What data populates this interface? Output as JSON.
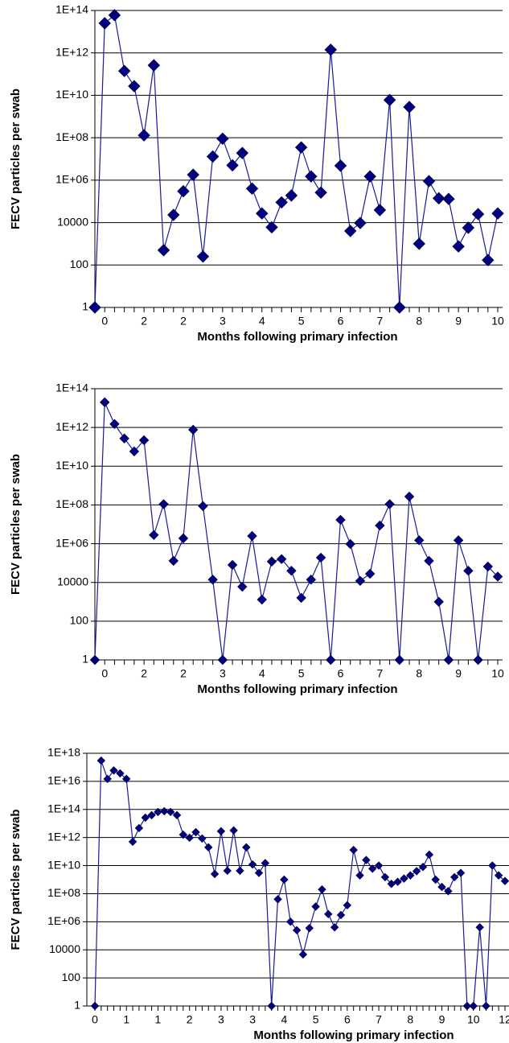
{
  "chart_data": [
    {
      "type": "line",
      "log": true,
      "grid": true,
      "color": "#000080",
      "x_label": "Months following primary infection",
      "y_label": "FECV particles per swab",
      "categories": [
        null,
        "0",
        null,
        null,
        null,
        "2",
        null,
        null,
        null,
        "2",
        null,
        null,
        null,
        "3",
        null,
        null,
        null,
        "4",
        null,
        null,
        null,
        "5",
        null,
        null,
        null,
        "6",
        null,
        null,
        null,
        "7",
        null,
        null,
        null,
        "8",
        null,
        null,
        null,
        "9",
        null,
        null,
        null,
        "10"
      ],
      "values": [
        1,
        25000000000000.0,
        60000000000000.0,
        140000000000.0,
        27000000000.0,
        130000000.0,
        260000000000.0,
        500,
        23000.0,
        300000.0,
        1800000.0,
        250,
        13000000.0,
        90000000.0,
        5000000.0,
        19000000.0,
        400000.0,
        27000.0,
        6000,
        90000.0,
        190000.0,
        35000000.0,
        1500000.0,
        260000.0,
        1400000000000.0,
        4800000.0,
        4000,
        9500,
        1500000.0,
        39000.0,
        6000000000.0,
        1,
        2800000000.0,
        1000,
        900000.0,
        140000.0,
        130000.0,
        750,
        5700,
        25000.0,
        170,
        27000.0
      ],
      "ylim": [
        1,
        100000000000000.0
      ],
      "yticks": [
        1,
        100,
        10000,
        {
          "value": 1000000.0,
          "label": "1E+06"
        },
        {
          "value": 100000000.0,
          "label": "1E+08"
        },
        {
          "value": 10000000000.0,
          "label": "1E+10"
        },
        {
          "value": 1000000000000.0,
          "label": "1E+12"
        },
        {
          "value": 100000000000000.0,
          "label": "1E+14"
        }
      ]
    },
    {
      "type": "line",
      "log": true,
      "grid": true,
      "color": "#000080",
      "x_label": "Months following primary infection",
      "y_label": "FECV particles per swab",
      "categories": [
        null,
        "0",
        null,
        null,
        null,
        "2",
        null,
        null,
        null,
        "2",
        null,
        null,
        null,
        "3",
        null,
        null,
        null,
        "4",
        null,
        null,
        null,
        "5",
        null,
        null,
        null,
        "6",
        null,
        null,
        null,
        "7",
        null,
        null,
        null,
        "8",
        null,
        null,
        null,
        "9",
        null,
        null,
        null,
        "10"
      ],
      "values": [
        1,
        20000000000000.0,
        1500000000000.0,
        270000000000.0,
        58000000000.0,
        220000000000.0,
        2800000.0,
        110000000.0,
        130000.0,
        1900000.0,
        760000000000.0,
        87000000.0,
        14000.0,
        1,
        80000.0,
        6000,
        2500000.0,
        1300,
        120000.0,
        160000.0,
        40000.0,
        1600,
        14000.0,
        190000.0,
        1,
        17000000.0,
        960000.0,
        12000.0,
        28000.0,
        8700000.0,
        110000000.0,
        1,
        270000000.0,
        1500000.0,
        130000.0,
        1000,
        1,
        1500000.0,
        40000.0,
        1,
        66000.0,
        20000.0
      ],
      "ylim": [
        1,
        100000000000000.0
      ],
      "yticks": [
        1,
        100,
        10000,
        {
          "value": 1000000.0,
          "label": "1E+06"
        },
        {
          "value": 100000000.0,
          "label": "1E+08"
        },
        {
          "value": 10000000000.0,
          "label": "1E+10"
        },
        {
          "value": 1000000000000.0,
          "label": "1E+12"
        },
        {
          "value": 100000000000000.0,
          "label": "1E+14"
        }
      ]
    },
    {
      "type": "line",
      "log": true,
      "grid": true,
      "color": "#000080",
      "x_label": "Months following primary infection",
      "y_label": "FECV particles per swab",
      "categories": [
        "0",
        null,
        null,
        null,
        null,
        "1",
        null,
        null,
        null,
        null,
        "1",
        null,
        null,
        null,
        null,
        "2",
        null,
        null,
        null,
        null,
        "3",
        null,
        null,
        null,
        null,
        "3",
        null,
        null,
        null,
        null,
        "4",
        null,
        null,
        null,
        null,
        "5",
        null,
        null,
        null,
        null,
        "6",
        null,
        null,
        null,
        null,
        "7",
        null,
        null,
        null,
        null,
        "8",
        null,
        null,
        null,
        null,
        "9",
        null,
        null,
        null,
        null,
        "10",
        null,
        null,
        null,
        null,
        "12"
      ],
      "values": [
        1,
        3e+17,
        1.5e+16,
        6e+16,
        3.7e+16,
        1.5e+16,
        500000000000.0,
        4700000000000.0,
        26000000000000.0,
        39000000000000.0,
        66000000000000.0,
        75000000000000.0,
        66000000000000.0,
        39000000000000.0,
        1600000000000.0,
        960000000000.0,
        2400000000000.0,
        850000000000.0,
        200000000000.0,
        2500000000.0,
        2800000000000.0,
        4300000000.0,
        3200000000000.0,
        4300000000.0,
        200000000000.0,
        12000000000.0,
        3000000000.0,
        15000000000.0,
        1,
        40000000.0,
        1000000000.0,
        1000000.0,
        250000.0,
        4700,
        350000.0,
        12000000.0,
        200000000.0,
        3500000.0,
        400000.0,
        3000000.0,
        15000000.0,
        130000000000.0,
        2000000000.0,
        25000000000.0,
        6000000000.0,
        10000000000.0,
        1500000000.0,
        500000000.0,
        700000000.0,
        1200000000.0,
        2000000000.0,
        4000000000.0,
        8000000000.0,
        60000000000.0,
        1000000000.0,
        300000000.0,
        150000000.0,
        1500000000.0,
        3000000000.0,
        1,
        1,
        400000.0,
        1,
        10000000000.0,
        2000000000.0,
        800000000.0
      ],
      "ylim": [
        1,
        1e+18
      ],
      "yticks": [
        1,
        100,
        10000,
        {
          "value": 1000000.0,
          "label": "1E+06"
        },
        {
          "value": 100000000.0,
          "label": "1E+08"
        },
        {
          "value": 10000000000.0,
          "label": "1E+10"
        },
        {
          "value": 1000000000000.0,
          "label": "1E+12"
        },
        {
          "value": 100000000000000.0,
          "label": "1E+14"
        },
        {
          "value": 1e+16,
          "label": "1E+16"
        },
        {
          "value": 1e+18,
          "label": "1E+18"
        }
      ]
    }
  ]
}
